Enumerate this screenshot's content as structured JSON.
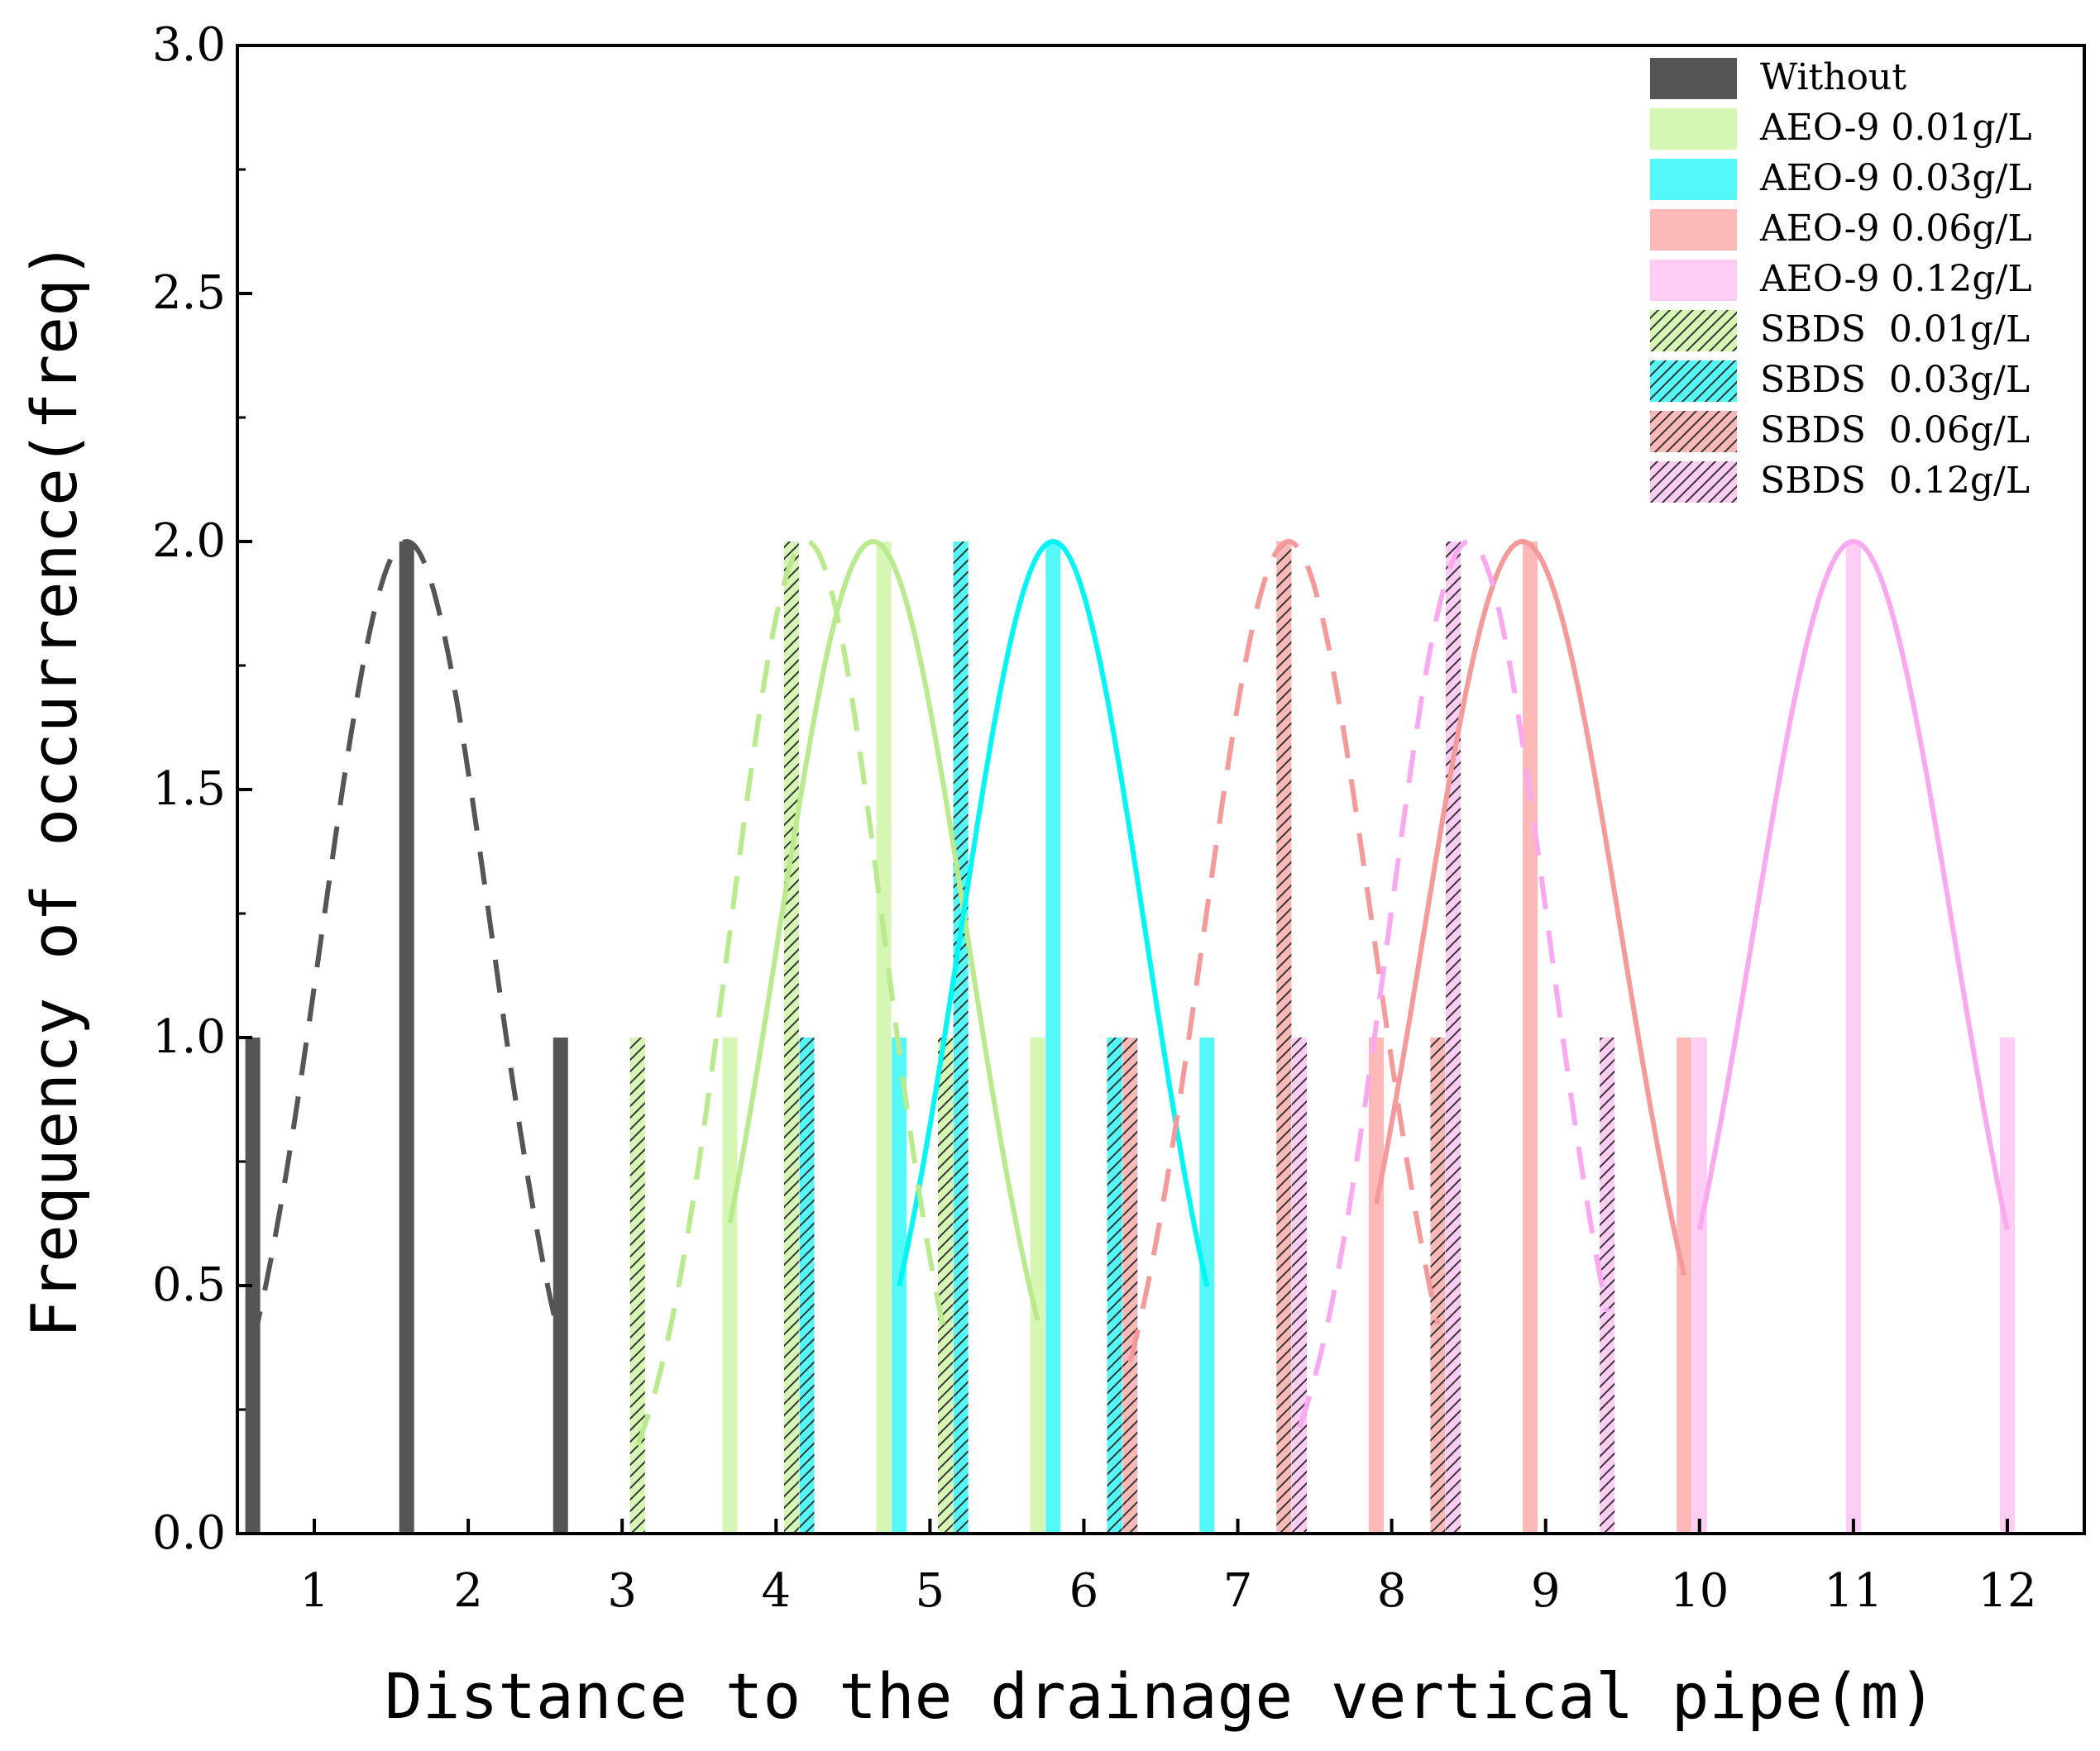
{
  "chart_data": {
    "type": "bar",
    "xlabel": "Distance to the drainage vertical pipe(m)",
    "ylabel": "Frequency of occurrence(freq)",
    "xlim": [
      0.5,
      12.5
    ],
    "ylim": [
      0,
      3.0
    ],
    "xticks": [
      1,
      2,
      3,
      4,
      5,
      6,
      7,
      8,
      9,
      10,
      11,
      12
    ],
    "yticks": [
      0.0,
      0.5,
      1.0,
      1.5,
      2.0,
      2.5,
      3.0
    ],
    "ytick_labels": [
      "0.0",
      "0.5",
      "1.0",
      "1.5",
      "2.0",
      "2.5",
      "3.0"
    ],
    "legend_position": "top-right",
    "series": [
      {
        "name": "Without",
        "color": "#555555",
        "hatched": false,
        "curve": "dashed",
        "x": [
          0.6,
          1.6,
          2.6
        ],
        "values": [
          1,
          2,
          1
        ],
        "fit_mean": 1.6,
        "fit_sigma": 0.55
      },
      {
        "name": "AEO-9 0.01g/L",
        "color": "#d6f7b3",
        "curve_color": "#b9ea8e",
        "hatched": false,
        "curve": "solid",
        "x": [
          3.7,
          4.7,
          5.7
        ],
        "values": [
          1,
          2,
          1
        ],
        "fit_mean": 4.63,
        "fit_sigma": 0.61
      },
      {
        "name": "AEO-9 0.03g/L",
        "color": "#55f8f8",
        "curve_color": "#00f5f5",
        "hatched": false,
        "curve": "solid",
        "x": [
          4.8,
          5.8,
          6.8
        ],
        "values": [
          1,
          2,
          1
        ],
        "fit_mean": 5.8,
        "fit_sigma": 0.6
      },
      {
        "name": "AEO-9 0.06g/L",
        "color": "#fdb8b8",
        "curve_color": "#f59a9a",
        "hatched": false,
        "curve": "solid",
        "x": [
          7.9,
          8.9,
          9.9
        ],
        "values": [
          1,
          2,
          1
        ],
        "fit_mean": 8.85,
        "fit_sigma": 0.64
      },
      {
        "name": "AEO-9 0.12g/L",
        "color": "#ffccf4",
        "curve_color": "#fba8f0",
        "hatched": false,
        "curve": "solid",
        "x": [
          10.0,
          11.0,
          12.0
        ],
        "values": [
          1,
          2,
          1
        ],
        "fit_mean": 11.0,
        "fit_sigma": 0.65
      },
      {
        "name": "SBDS  0.01g/L",
        "color": "#d6f7b3",
        "curve_color": "#b9ea8e",
        "hatched": true,
        "curve": "dashed",
        "x": [
          3.1,
          4.1,
          5.1
        ],
        "values": [
          1,
          2,
          1
        ],
        "fit_mean": 4.2,
        "fit_sigma": 0.5
      },
      {
        "name": "SBDS  0.03g/L",
        "color": "#55f8f8",
        "curve_color": "#00f5f5",
        "hatched": true,
        "curve": "none",
        "x": [
          4.2,
          5.2,
          6.2
        ],
        "values": [
          1,
          2,
          1
        ]
      },
      {
        "name": "SBDS  0.06g/L",
        "color": "#fdb8b8",
        "curve_color": "#f59a9a",
        "hatched": true,
        "curve": "dashed",
        "x": [
          6.3,
          7.3,
          8.3
        ],
        "values": [
          1,
          2,
          1
        ],
        "fit_mean": 7.33,
        "fit_sigma": 0.55
      },
      {
        "name": "SBDS  0.12g/L",
        "color": "#ffccf4",
        "curve_color": "#fba8f0",
        "hatched": true,
        "curve": "dashed",
        "x": [
          7.4,
          8.4,
          9.4
        ],
        "values": [
          1,
          2,
          1
        ],
        "fit_mean": 8.5,
        "fit_sigma": 0.52
      }
    ]
  }
}
